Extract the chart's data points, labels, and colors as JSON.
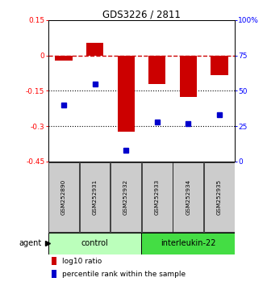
{
  "title": "GDS3226 / 2811",
  "samples": [
    "GSM252890",
    "GSM252931",
    "GSM252932",
    "GSM252933",
    "GSM252934",
    "GSM252935"
  ],
  "log10_ratio": [
    -0.022,
    0.052,
    -0.322,
    -0.122,
    -0.175,
    -0.082
  ],
  "percentile_rank": [
    40,
    55,
    8,
    28,
    27,
    33
  ],
  "ylim_left": [
    -0.45,
    0.15
  ],
  "ylim_right": [
    0,
    100
  ],
  "yticks_left": [
    0.15,
    0.0,
    -0.15,
    -0.3,
    -0.45
  ],
  "yticks_right": [
    100,
    75,
    50,
    25,
    0
  ],
  "ytick_labels_left": [
    "0.15",
    "0",
    "-0.15",
    "-0.3",
    "-0.45"
  ],
  "ytick_labels_right": [
    "100%",
    "75",
    "50",
    "25",
    "0"
  ],
  "hlines": [
    -0.15,
    -0.3
  ],
  "bar_color": "#cc0000",
  "dot_color": "#0000cc",
  "bar_width": 0.55,
  "n_control": 3,
  "n_interleukin": 3,
  "control_label": "control",
  "interleukin_label": "interleukin-22",
  "agent_label": "agent",
  "legend_bar_label": "log10 ratio",
  "legend_dot_label": "percentile rank within the sample",
  "control_color": "#bbffbb",
  "interleukin_color": "#44dd44",
  "sample_label_bg": "#cccccc",
  "dashed_line_y": 0.0,
  "dashed_line_color": "#cc0000",
  "bg_color": "#f0f0f0"
}
